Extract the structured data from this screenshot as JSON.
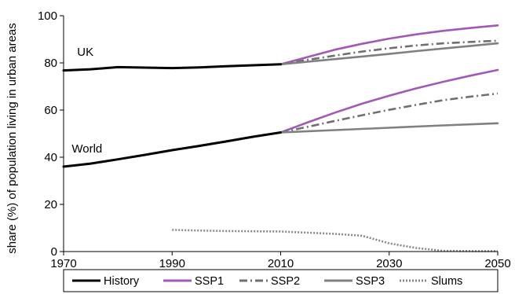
{
  "chart_data": {
    "type": "line",
    "title": "",
    "xlabel": "",
    "ylabel": "share (%) of population living in urban areas",
    "xlim": [
      1970,
      2050
    ],
    "ylim": [
      0,
      100
    ],
    "x_ticks": [
      1970,
      1990,
      2010,
      2030,
      2050
    ],
    "y_ticks": [
      0,
      20,
      40,
      60,
      80,
      100
    ],
    "grid": false,
    "legend_position": "bottom",
    "annotations": [
      {
        "text": "UK",
        "x": 1972.5,
        "y": 83
      },
      {
        "text": "World",
        "x": 1971.5,
        "y": 42
      }
    ],
    "series": [
      {
        "name": "History",
        "group": "UK",
        "color": "#000000",
        "style": "solid",
        "x": [
          1970,
          1975,
          1980,
          1985,
          1990,
          1995,
          2000,
          2005,
          2010
        ],
        "y": [
          76.8,
          77.3,
          78.2,
          78.0,
          77.8,
          78.1,
          78.6,
          79.0,
          79.4
        ]
      },
      {
        "name": "History",
        "group": "World",
        "color": "#000000",
        "style": "solid",
        "x": [
          1970,
          1975,
          1980,
          1985,
          1990,
          1995,
          2000,
          2005,
          2010
        ],
        "y": [
          36.0,
          37.3,
          39.1,
          41.0,
          43.0,
          44.8,
          46.7,
          48.7,
          50.5
        ]
      },
      {
        "name": "SSP1",
        "group": "UK",
        "color": "#a259b5",
        "style": "solid",
        "x": [
          2010,
          2015,
          2020,
          2025,
          2030,
          2035,
          2040,
          2045,
          2050
        ],
        "y": [
          79.4,
          82.5,
          85.6,
          88.1,
          90.3,
          92.1,
          93.6,
          94.8,
          95.9
        ]
      },
      {
        "name": "SSP2",
        "group": "UK",
        "color": "#707070",
        "style": "dashdot",
        "x": [
          2010,
          2015,
          2020,
          2025,
          2030,
          2035,
          2040,
          2045,
          2050
        ],
        "y": [
          79.4,
          81.3,
          83.1,
          84.8,
          86.2,
          87.4,
          88.3,
          88.9,
          89.4
        ]
      },
      {
        "name": "SSP3",
        "group": "UK",
        "color": "#808080",
        "style": "solid",
        "x": [
          2010,
          2015,
          2020,
          2025,
          2030,
          2035,
          2040,
          2045,
          2050
        ],
        "y": [
          79.4,
          80.5,
          81.6,
          82.7,
          83.8,
          85.0,
          86.1,
          87.2,
          88.3
        ]
      },
      {
        "name": "SSP1",
        "group": "World",
        "color": "#a259b5",
        "style": "solid",
        "x": [
          2010,
          2015,
          2020,
          2025,
          2030,
          2035,
          2040,
          2045,
          2050
        ],
        "y": [
          50.5,
          54.8,
          58.9,
          62.7,
          66.1,
          69.2,
          72.0,
          74.6,
          77.0
        ]
      },
      {
        "name": "SSP2",
        "group": "World",
        "color": "#707070",
        "style": "dashdot",
        "x": [
          2010,
          2015,
          2020,
          2025,
          2030,
          2035,
          2040,
          2045,
          2050
        ],
        "y": [
          50.5,
          52.9,
          55.4,
          57.8,
          60.1,
          62.2,
          64.2,
          65.7,
          67.0
        ]
      },
      {
        "name": "SSP3",
        "group": "World",
        "color": "#808080",
        "style": "solid",
        "x": [
          2010,
          2020,
          2030,
          2040,
          2050
        ],
        "y": [
          50.5,
          51.5,
          52.5,
          53.5,
          54.4
        ]
      },
      {
        "name": "Slums",
        "group": "World",
        "color": "#888888",
        "style": "dotted",
        "x": [
          1990,
          1995,
          2000,
          2005,
          2010,
          2015,
          2020,
          2025,
          2030,
          2035,
          2040,
          2045,
          2050
        ],
        "y": [
          9.2,
          8.9,
          8.7,
          8.6,
          8.5,
          8.0,
          7.5,
          6.7,
          3.5,
          1.5,
          0.3,
          0.2,
          0.2
        ]
      }
    ],
    "legend": [
      {
        "label": "History",
        "color": "#000000",
        "style": "solid",
        "width": 3
      },
      {
        "label": "SSP1",
        "color": "#a259b5",
        "style": "solid",
        "width": 3
      },
      {
        "label": "SSP2",
        "color": "#707070",
        "style": "dashdot",
        "width": 3
      },
      {
        "label": "SSP3",
        "color": "#808080",
        "style": "solid",
        "width": 3
      },
      {
        "label": "Slums",
        "color": "#888888",
        "style": "dotted",
        "width": 3
      }
    ]
  }
}
